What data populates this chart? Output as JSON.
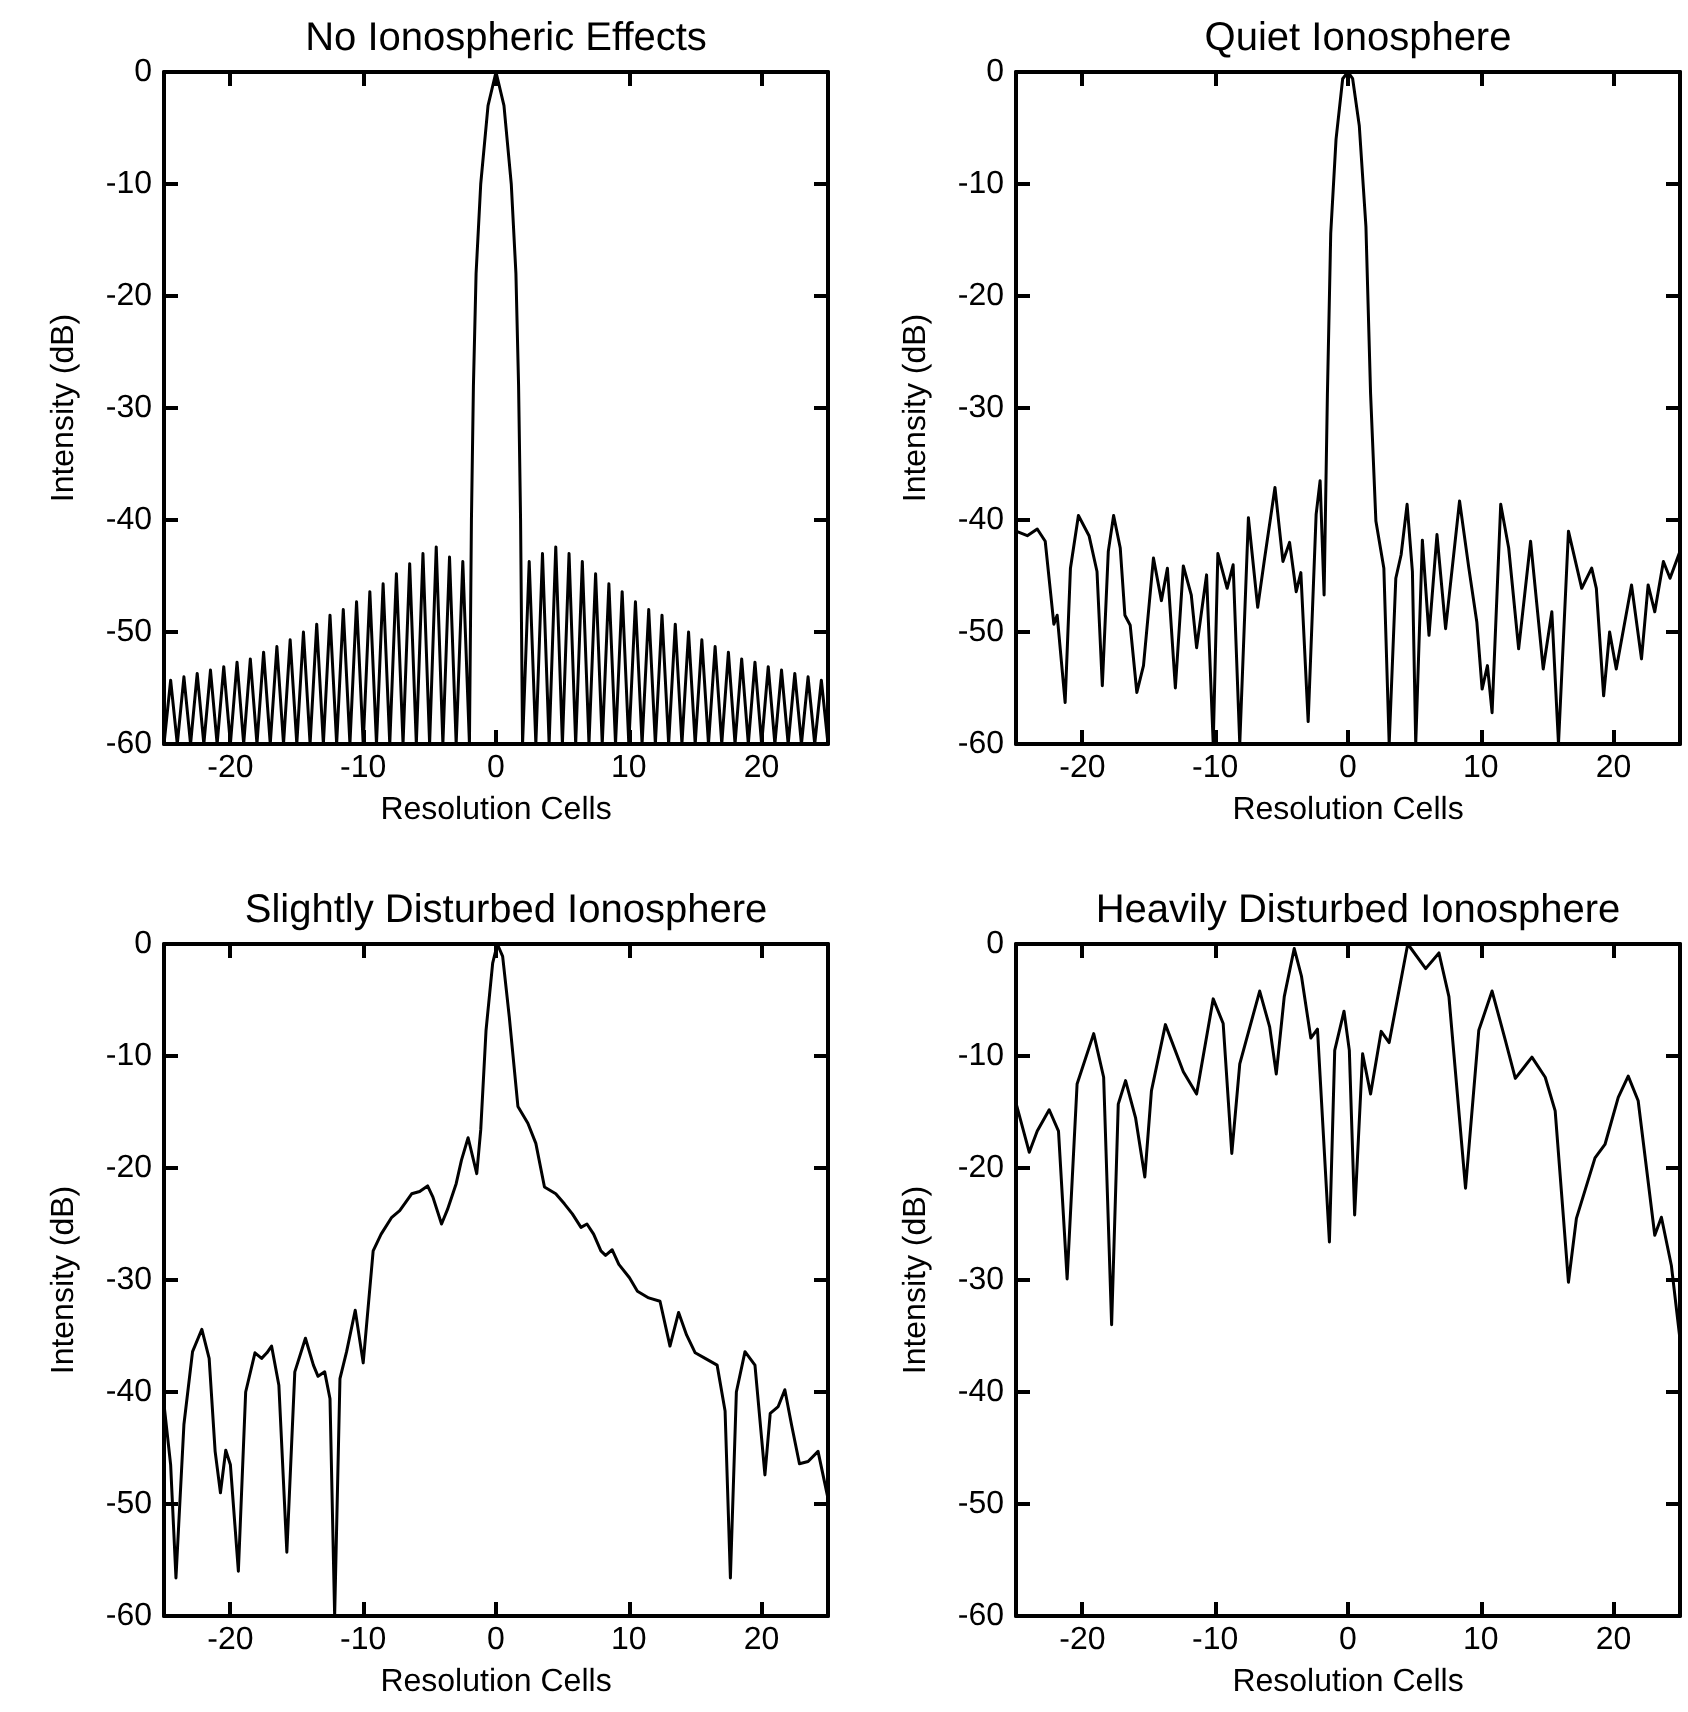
{
  "chart_data": [
    {
      "type": "line",
      "title": "No Ionospheric Effects",
      "xlabel": "Resolution Cells",
      "ylabel": "Intensity (dB)",
      "xlim": [
        -25,
        25
      ],
      "xticks": [
        -20,
        -10,
        0,
        10,
        20
      ],
      "ylim": [
        -60,
        0
      ],
      "yticks": [
        -60,
        -50,
        -40,
        -30,
        -20,
        -10,
        0
      ],
      "marker": "none",
      "color": "#000000",
      "x": [
        -25,
        -24.5,
        -24,
        -23.5,
        -23,
        -22.5,
        -22,
        -21.5,
        -21,
        -20.5,
        -20,
        -19.5,
        -19,
        -18.5,
        -18,
        -17.5,
        -17,
        -16.5,
        -16,
        -15.5,
        -15,
        -14.5,
        -14,
        -13.5,
        -13,
        -12.5,
        -12,
        -11.5,
        -11,
        -10.5,
        -10,
        -9.5,
        -9,
        -8.5,
        -8,
        -7.5,
        -7,
        -6.5,
        -6,
        -5.5,
        -5,
        -4.5,
        -4,
        -3.5,
        -3,
        -2.5,
        -2,
        -1.85,
        -1.7,
        -1.5,
        -1.15,
        -0.6,
        0,
        0.6,
        1.15,
        1.5,
        1.7,
        1.85,
        2,
        2.5,
        3,
        3.5,
        4,
        4.5,
        5,
        5.5,
        6,
        6.5,
        7,
        7.5,
        8,
        8.5,
        9,
        9.5,
        10,
        10.5,
        11,
        11.5,
        12,
        12.5,
        13,
        13.5,
        14,
        14.5,
        15,
        15.5,
        16,
        16.5,
        17,
        17.5,
        18,
        18.5,
        19,
        19.5,
        20,
        20.5,
        21,
        21.5,
        22,
        22.5,
        23,
        23.5,
        24,
        24.5,
        25
      ],
      "values": [
        -60,
        -54.3,
        -60,
        -54,
        -60,
        -53.7,
        -60,
        -53.4,
        -60,
        -53.1,
        -60,
        -52.7,
        -60,
        -52.4,
        -60,
        -51.8,
        -60,
        -51.3,
        -60,
        -50.7,
        -60,
        -50,
        -60,
        -49.3,
        -60,
        -48.5,
        -60,
        -48,
        -60,
        -47.3,
        -60,
        -46.4,
        -60,
        -45.7,
        -60,
        -44.8,
        -60,
        -43.9,
        -60,
        -43,
        -60,
        -42.4,
        -60,
        -43.3,
        -60,
        -43.7,
        -60,
        -40,
        -28,
        -18,
        -10,
        -3,
        0,
        -3,
        -10,
        -18,
        -28,
        -40,
        -60,
        -43.7,
        -60,
        -43,
        -60,
        -42.4,
        -60,
        -43,
        -60,
        -43.7,
        -60,
        -44.8,
        -60,
        -45.7,
        -60,
        -46.4,
        -60,
        -47.3,
        -60,
        -48,
        -60,
        -48.5,
        -60,
        -49.3,
        -60,
        -50,
        -60,
        -50.7,
        -60,
        -51.3,
        -60,
        -51.8,
        -60,
        -52.4,
        -60,
        -52.7,
        -60,
        -53.1,
        -60,
        -53.4,
        -60,
        -53.7,
        -60,
        -54,
        -60,
        -54.3,
        -60
      ]
    },
    {
      "type": "line",
      "title": "Quiet Ionosphere",
      "xlabel": "Resolution Cells",
      "ylabel": "Intensity (dB)",
      "xlim": [
        -25,
        25
      ],
      "xticks": [
        -20,
        -10,
        0,
        10,
        20
      ],
      "ylim": [
        -60,
        0
      ],
      "yticks": [
        -60,
        -50,
        -40,
        -30,
        -20,
        -10,
        0
      ],
      "marker": "none",
      "color": "#000000",
      "x": [
        -25,
        -24.15,
        -23.4,
        -22.8,
        -22.15,
        -21.9,
        -21.3,
        -20.9,
        -20.3,
        -19.5,
        -18.9,
        -18.5,
        -18.05,
        -17.65,
        -17.15,
        -16.8,
        -16.4,
        -15.9,
        -15.4,
        -14.65,
        -14.05,
        -13.6,
        -13,
        -12.4,
        -11.8,
        -11.4,
        -10.65,
        -10.15,
        -9.8,
        -9.1,
        -8.65,
        -8.15,
        -7.5,
        -6.8,
        -6.3,
        -5.5,
        -4.9,
        -4.4,
        -3.9,
        -3.55,
        -3,
        -2.4,
        -2.1,
        -1.8,
        -1.55,
        -1.3,
        -0.9,
        -0.4,
        0,
        0.35,
        0.85,
        1.35,
        1.7,
        2.1,
        2.7,
        3.1,
        3.6,
        4,
        4.45,
        4.85,
        5.1,
        5.6,
        6.1,
        6.7,
        7.35,
        8.4,
        9.1,
        9.7,
        10.1,
        10.5,
        10.85,
        11.5,
        12.1,
        12.85,
        13.75,
        14.7,
        15.35,
        15.85,
        16.6,
        17.6,
        18.35,
        18.7,
        19.25,
        19.7,
        20.2,
        21.35,
        22.1,
        22.6,
        23.1,
        23.75,
        24.25,
        25
      ],
      "values": [
        -41,
        -41.4,
        -40.8,
        -41.9,
        -49.3,
        -48.5,
        -56.3,
        -44.3,
        -39.6,
        -41.4,
        -44.6,
        -54.8,
        -42.8,
        -39.6,
        -42.5,
        -48.5,
        -49.4,
        -55.4,
        -53,
        -43.4,
        -47.2,
        -44.3,
        -55,
        -44.1,
        -46.7,
        -51.4,
        -44.9,
        -60,
        -43,
        -46.1,
        -44,
        -60,
        -39.8,
        -47.8,
        -43.6,
        -37.1,
        -43.7,
        -42,
        -46.4,
        -44.7,
        -58,
        -39.5,
        -36.5,
        -46.7,
        -28.7,
        -14.4,
        -6,
        -0.6,
        0,
        -0.6,
        -4.8,
        -13.8,
        -28.7,
        -40.1,
        -44.3,
        -60,
        -45.2,
        -43.1,
        -38.6,
        -44.6,
        -60,
        -41.8,
        -50.3,
        -41.3,
        -49.7,
        -38.3,
        -44.3,
        -49.1,
        -55.1,
        -53,
        -57.2,
        -38.6,
        -42.5,
        -51.5,
        -41.9,
        -53.3,
        -48.2,
        -60,
        -41,
        -46.1,
        -44.3,
        -46.1,
        -55.7,
        -50,
        -53.3,
        -45.8,
        -52.4,
        -45.8,
        -48.2,
        -43.7,
        -45.2,
        -42.8
      ]
    },
    {
      "type": "line",
      "title": "Slightly Disturbed Ionosphere",
      "xlabel": "Resolution Cells",
      "ylabel": "Intensity (dB)",
      "xlim": [
        -25,
        25
      ],
      "xticks": [
        -20,
        -10,
        0,
        10,
        20
      ],
      "ylim": [
        -60,
        0
      ],
      "yticks": [
        -60,
        -50,
        -40,
        -30,
        -20,
        -10,
        0
      ],
      "marker": "none",
      "color": "#000000",
      "x": [
        -25,
        -24.5,
        -24.1,
        -23.5,
        -22.85,
        -22.15,
        -21.6,
        -21.15,
        -20.75,
        -20.35,
        -20,
        -19.4,
        -18.85,
        -18.15,
        -17.65,
        -17.25,
        -16.9,
        -16.35,
        -15.75,
        -15.15,
        -14.35,
        -13.75,
        -13.4,
        -12.9,
        -12.5,
        -12.15,
        -11.75,
        -11.25,
        -10.6,
        -10,
        -9.25,
        -8.65,
        -7.85,
        -7.25,
        -6.35,
        -5.75,
        -5.15,
        -4.75,
        -4.1,
        -3.65,
        -3,
        -2.6,
        -2.1,
        -1.45,
        -1.15,
        -0.75,
        -0.25,
        0.1,
        0.5,
        1,
        1.65,
        2.4,
        3,
        3.65,
        4.5,
        5.15,
        5.75,
        6.4,
        6.85,
        7.35,
        7.9,
        8.25,
        8.75,
        9.25,
        10.05,
        10.65,
        11.5,
        12.35,
        13.1,
        13.75,
        14.35,
        15,
        15.75,
        16.65,
        17.25,
        17.65,
        18.1,
        18.75,
        19.5,
        20.25,
        20.65,
        21.25,
        21.75,
        22.25,
        22.85,
        23.5,
        24.25,
        25
      ],
      "values": [
        -41.1,
        -46.5,
        -56.6,
        -42.9,
        -36.4,
        -34.4,
        -37,
        -45.3,
        -49,
        -45.2,
        -46.5,
        -56,
        -40,
        -36.5,
        -37,
        -36.5,
        -35.9,
        -39.4,
        -54.3,
        -38.2,
        -35.2,
        -37.6,
        -38.6,
        -38.2,
        -40.6,
        -60,
        -38.8,
        -36.4,
        -32.7,
        -37.4,
        -27.4,
        -25.9,
        -24.4,
        -23.8,
        -22.3,
        -22.1,
        -21.6,
        -22.6,
        -25,
        -23.7,
        -21.4,
        -19.3,
        -17.3,
        -20.5,
        -16.6,
        -7.7,
        -1.7,
        0,
        -1.1,
        -6.5,
        -14.5,
        -16,
        -17.8,
        -21.7,
        -22.3,
        -23.2,
        -24.1,
        -25.3,
        -25,
        -25.9,
        -27.4,
        -27.8,
        -27.3,
        -28.6,
        -29.8,
        -31,
        -31.6,
        -31.9,
        -35.9,
        -32.9,
        -34.9,
        -36.5,
        -37,
        -37.6,
        -41.7,
        -56.6,
        -40,
        -36.4,
        -37.6,
        -47.4,
        -41.9,
        -41.3,
        -39.8,
        -42.9,
        -46.4,
        -46.2,
        -45.3,
        -49.5
      ]
    },
    {
      "type": "line",
      "title": "Heavily Disturbed Ionosphere",
      "xlabel": "Resolution Cells",
      "ylabel": "Intensity (dB)",
      "xlim": [
        -25,
        25
      ],
      "xticks": [
        -20,
        -10,
        0,
        10,
        20
      ],
      "ylim": [
        -60,
        0
      ],
      "yticks": [
        -60,
        -50,
        -40,
        -30,
        -20,
        -10,
        0
      ],
      "marker": "none",
      "color": "#000000",
      "x": [
        -25,
        -24,
        -23.4,
        -22.5,
        -21.8,
        -21.15,
        -20.4,
        -19.15,
        -18.4,
        -17.8,
        -17.3,
        -16.75,
        -16,
        -15.3,
        -14.8,
        -13.75,
        -12.4,
        -11.4,
        -10.15,
        -9.4,
        -8.75,
        -8.15,
        -6.65,
        -5.9,
        -5.4,
        -4.8,
        -4.05,
        -3.5,
        -2.8,
        -2.3,
        -1.4,
        -1,
        -0.3,
        0.1,
        0.5,
        1.1,
        1.7,
        2.5,
        3.1,
        4.5,
        5.85,
        6.85,
        7.6,
        8.85,
        9.85,
        10.85,
        11.85,
        12.6,
        13.85,
        14.85,
        15.6,
        16.6,
        17.2,
        18.6,
        19.35,
        20.35,
        21.1,
        21.85,
        23.1,
        23.6,
        24.35,
        25
      ],
      "values": [
        -14.2,
        -18.6,
        -16.7,
        -14.8,
        -16.7,
        -29.9,
        -12.5,
        -8,
        -11.9,
        -34,
        -14.3,
        -12.2,
        -15.5,
        -20.8,
        -13.1,
        -7.2,
        -11.4,
        -13.4,
        -4.9,
        -7.1,
        -18.7,
        -10.7,
        -4.2,
        -7.4,
        -11.6,
        -4.7,
        -0.4,
        -2.9,
        -8.4,
        -7.6,
        -26.6,
        -9.5,
        -6,
        -9.5,
        -24.2,
        -9.8,
        -13.4,
        -7.8,
        -8.8,
        0,
        -2.2,
        -0.8,
        -4.7,
        -21.8,
        -7.7,
        -4.2,
        -8.6,
        -12,
        -10.1,
        -11.9,
        -14.9,
        -30.2,
        -24.5,
        -19.1,
        -17.9,
        -13.7,
        -11.8,
        -14,
        -26,
        -24.4,
        -28.7,
        -35.3
      ]
    }
  ]
}
